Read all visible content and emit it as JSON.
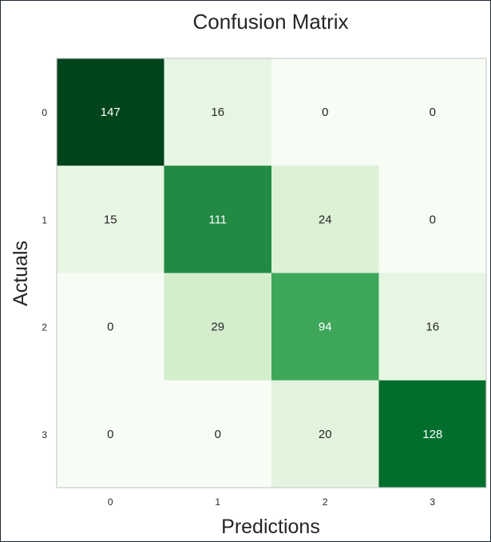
{
  "chart_data": {
    "type": "heatmap",
    "title": "Confusion Matrix",
    "xlabel": "Predictions",
    "ylabel": "Actuals",
    "x_categories": [
      "0",
      "1",
      "2",
      "3"
    ],
    "y_categories": [
      "0",
      "1",
      "2",
      "3"
    ],
    "values": [
      [
        147,
        16,
        0,
        0
      ],
      [
        15,
        111,
        24,
        0
      ],
      [
        0,
        29,
        94,
        16
      ],
      [
        0,
        0,
        20,
        128
      ]
    ],
    "colormap": "Greens",
    "value_range": [
      0,
      147
    ],
    "grid": false,
    "colorbar": false
  }
}
